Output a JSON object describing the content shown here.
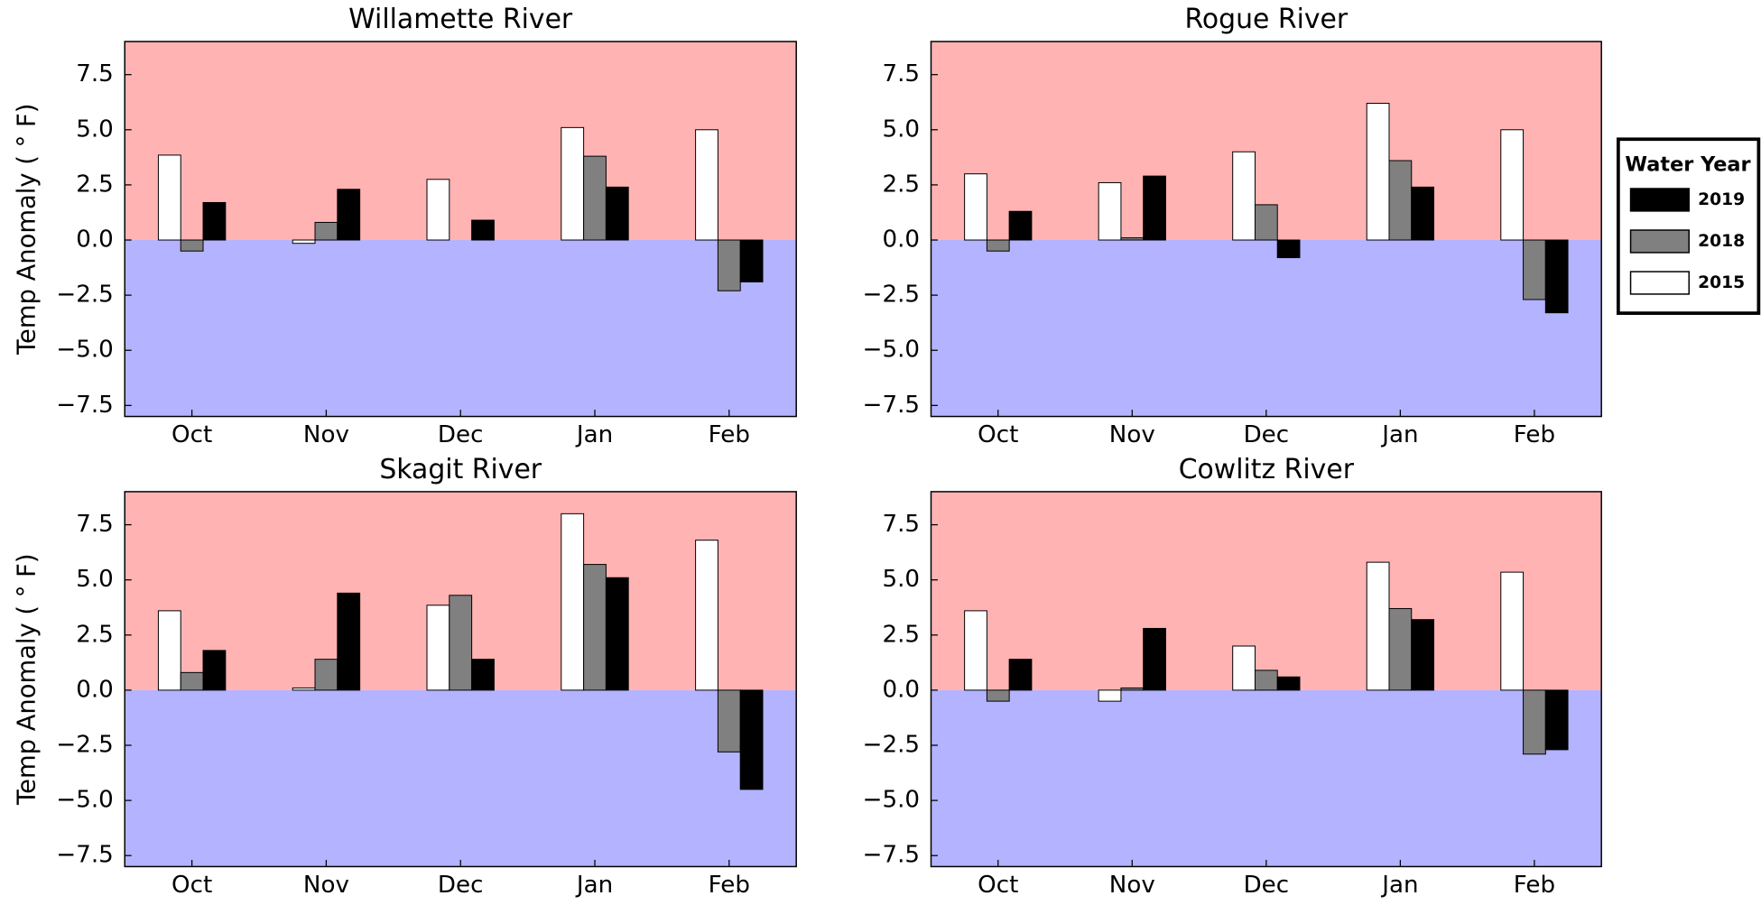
{
  "chart_data": [
    {
      "type": "bar",
      "title": "Willamette River",
      "ylabel": "Temp Anomaly ( ° F)",
      "categories": [
        "Oct",
        "Nov",
        "Dec",
        "Jan",
        "Feb"
      ],
      "series": [
        {
          "name": "2015",
          "color": "#ffffff",
          "values": [
            3.85,
            -0.15,
            2.75,
            5.1,
            5.0
          ]
        },
        {
          "name": "2018",
          "color": "#808080",
          "values": [
            -0.5,
            0.8,
            0.0,
            3.8,
            -2.3
          ]
        },
        {
          "name": "2019",
          "color": "#000000",
          "values": [
            1.7,
            2.3,
            0.9,
            2.4,
            -1.9
          ]
        }
      ],
      "ylim": [
        -8,
        9
      ],
      "yticks": [
        {
          "value": -7.5,
          "label": "−7.5"
        },
        {
          "value": -5,
          "label": "−5.0"
        },
        {
          "value": -2.5,
          "label": "−2.5"
        },
        {
          "value": 0,
          "label": "0.0"
        },
        2.5,
        {
          "value": 5,
          "label": "5.0"
        },
        7.5
      ],
      "positive_background": "#ffb3b3",
      "negative_background": "#b3b3ff"
    },
    {
      "type": "bar",
      "title": "Rogue River",
      "categories": [
        "Oct",
        "Nov",
        "Dec",
        "Jan",
        "Feb"
      ],
      "series": [
        {
          "name": "2015",
          "color": "#ffffff",
          "values": [
            3.0,
            2.6,
            4.0,
            6.2,
            5.0
          ]
        },
        {
          "name": "2018",
          "color": "#808080",
          "values": [
            -0.5,
            0.1,
            1.6,
            3.6,
            -2.7
          ]
        },
        {
          "name": "2019",
          "color": "#000000",
          "values": [
            1.3,
            2.9,
            -0.8,
            2.4,
            -3.3
          ]
        }
      ],
      "ylim": [
        -8,
        9
      ],
      "yticks": [
        {
          "value": -7.5,
          "label": "−7.5"
        },
        {
          "value": -5,
          "label": "−5.0"
        },
        {
          "value": -2.5,
          "label": "−2.5"
        },
        {
          "value": 0,
          "label": "0.0"
        },
        2.5,
        {
          "value": 5,
          "label": "5.0"
        },
        7.5
      ],
      "positive_background": "#ffb3b3",
      "negative_background": "#b3b3ff"
    },
    {
      "type": "bar",
      "title": "Skagit River",
      "ylabel": "Temp Anomaly ( ° F)",
      "categories": [
        "Oct",
        "Nov",
        "Dec",
        "Jan",
        "Feb"
      ],
      "series": [
        {
          "name": "2015",
          "color": "#ffffff",
          "values": [
            3.6,
            0.1,
            3.85,
            8.0,
            6.8
          ]
        },
        {
          "name": "2018",
          "color": "#808080",
          "values": [
            0.8,
            1.4,
            4.3,
            5.7,
            -2.8
          ]
        },
        {
          "name": "2019",
          "color": "#000000",
          "values": [
            1.8,
            4.4,
            1.4,
            5.1,
            -4.5
          ]
        }
      ],
      "ylim": [
        -8,
        9
      ],
      "yticks": [
        {
          "value": -7.5,
          "label": "−7.5"
        },
        {
          "value": -5,
          "label": "−5.0"
        },
        {
          "value": -2.5,
          "label": "−2.5"
        },
        {
          "value": 0,
          "label": "0.0"
        },
        2.5,
        {
          "value": 5,
          "label": "5.0"
        },
        7.5
      ],
      "positive_background": "#ffb3b3",
      "negative_background": "#b3b3ff"
    },
    {
      "type": "bar",
      "title": "Cowlitz River",
      "categories": [
        "Oct",
        "Nov",
        "Dec",
        "Jan",
        "Feb"
      ],
      "series": [
        {
          "name": "2015",
          "color": "#ffffff",
          "values": [
            3.6,
            -0.5,
            2.0,
            5.8,
            5.35
          ]
        },
        {
          "name": "2018",
          "color": "#808080",
          "values": [
            -0.5,
            0.1,
            0.9,
            3.7,
            -2.9
          ]
        },
        {
          "name": "2019",
          "color": "#000000",
          "values": [
            1.4,
            2.8,
            0.6,
            3.2,
            -2.7
          ]
        }
      ],
      "ylim": [
        -8,
        9
      ],
      "yticks": [
        {
          "value": -7.5,
          "label": "−7.5"
        },
        {
          "value": -5,
          "label": "−5.0"
        },
        {
          "value": -2.5,
          "label": "−2.5"
        },
        {
          "value": 0,
          "label": "0.0"
        },
        2.5,
        {
          "value": 5,
          "label": "5.0"
        },
        7.5
      ],
      "positive_background": "#ffb3b3",
      "negative_background": "#b3b3ff"
    }
  ],
  "legend_title": "Water Year"
}
